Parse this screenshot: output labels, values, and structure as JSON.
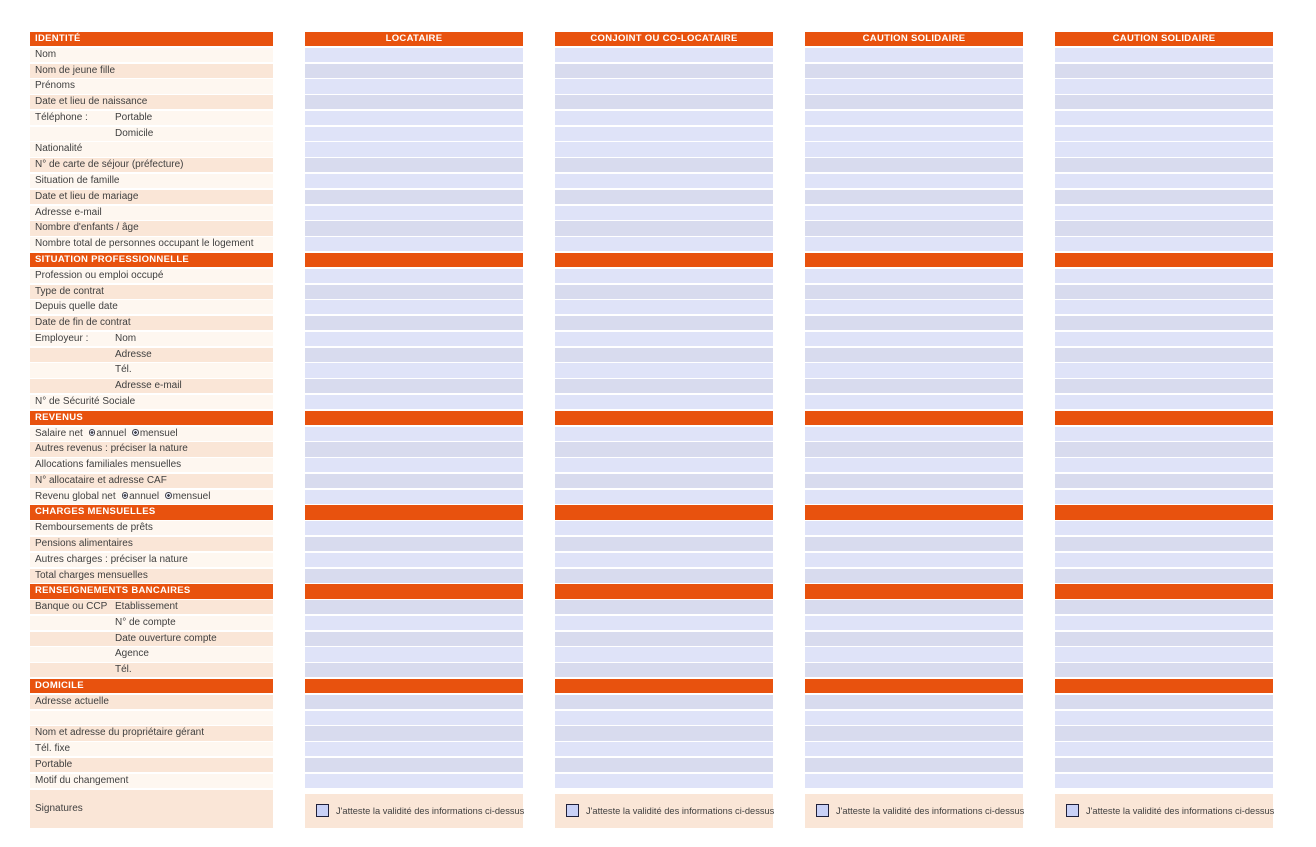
{
  "colors": {
    "section_header_bg": "#E8520E",
    "label_row_peach": "#FAE6D7",
    "label_row_white": "#FEF7F0",
    "input_bar_light": "#DFE3F8",
    "input_bar_dark": "#D8DBEE",
    "label_text": "#3F3F3F",
    "header_text": "#FFFFFF",
    "checkbox_fill": "#C9D1F7",
    "checkbox_border": "#20203A"
  },
  "columns": [
    "LOCATAIRE",
    "CONJOINT OU CO-LOCATAIRE",
    "CAUTION SOLIDAIRE",
    "CAUTION SOLIDAIRE"
  ],
  "sections": [
    {
      "title": "IDENTITÉ",
      "rows": [
        {
          "label": "Nom",
          "shade": "white"
        },
        {
          "label": "Nom de jeune fille",
          "shade": "peach"
        },
        {
          "label": "Prénoms",
          "shade": "white"
        },
        {
          "label": "Date et lieu de naissance",
          "shade": "peach"
        },
        {
          "label": "Téléphone :",
          "sublabel": "Portable",
          "shade": "white"
        },
        {
          "label": "",
          "sublabel": "Domicile",
          "shade": "white"
        },
        {
          "label": "Nationalité",
          "shade": "white"
        },
        {
          "label": "N° de carte de séjour (préfecture)",
          "shade": "peach"
        },
        {
          "label": "Situation de famille",
          "shade": "white"
        },
        {
          "label": "Date et lieu de mariage",
          "shade": "peach"
        },
        {
          "label": "Adresse e-mail",
          "shade": "white"
        },
        {
          "label": "Nombre d'enfants / âge",
          "shade": "peach"
        },
        {
          "label": "Nombre total de personnes occupant le logement",
          "shade": "white"
        }
      ]
    },
    {
      "title": "SITUATION PROFESSIONNELLE",
      "rows": [
        {
          "label": "Profession ou emploi occupé",
          "shade": "white"
        },
        {
          "label": "Type de contrat",
          "shade": "peach"
        },
        {
          "label": "Depuis quelle date",
          "shade": "white"
        },
        {
          "label": "Date de fin de contrat",
          "shade": "peach"
        },
        {
          "label": "Employeur :",
          "sublabel": "Nom",
          "shade": "white"
        },
        {
          "label": "",
          "sublabel": "Adresse",
          "shade": "peach"
        },
        {
          "label": "",
          "sublabel": "Tél.",
          "shade": "white"
        },
        {
          "label": "",
          "sublabel": "Adresse e-mail",
          "shade": "peach"
        },
        {
          "label": "N° de Sécurité Sociale",
          "shade": "white"
        }
      ]
    },
    {
      "title": "REVENUS",
      "rows": [
        {
          "label": "Salaire net",
          "radios": [
            "annuel",
            "mensuel"
          ],
          "radio_selected": null,
          "shade": "white"
        },
        {
          "label": "Autres revenus : préciser la nature",
          "shade": "peach"
        },
        {
          "label": "Allocations familiales mensuelles",
          "shade": "white"
        },
        {
          "label": "N° allocataire et adresse CAF",
          "shade": "peach"
        },
        {
          "label": "Revenu global net",
          "radios": [
            "annuel",
            "mensuel"
          ],
          "radio_selected": null,
          "shade": "white"
        }
      ]
    },
    {
      "title": "CHARGES MENSUELLES",
      "rows": [
        {
          "label": "Remboursements de prêts",
          "shade": "white"
        },
        {
          "label": "Pensions alimentaires",
          "shade": "peach"
        },
        {
          "label": "Autres charges : préciser la nature",
          "shade": "white"
        },
        {
          "label": "Total charges mensuelles",
          "shade": "peach"
        }
      ]
    },
    {
      "title": "RENSEIGNEMENTS BANCAIRES",
      "rows": [
        {
          "label": "Banque ou CCP",
          "sublabel": "Etablissement",
          "shade": "peach"
        },
        {
          "label": "",
          "sublabel": "N° de compte",
          "shade": "white"
        },
        {
          "label": "",
          "sublabel": "Date ouverture compte",
          "shade": "peach"
        },
        {
          "label": "",
          "sublabel": "Agence",
          "shade": "white"
        },
        {
          "label": "",
          "sublabel": "Tél.",
          "shade": "peach"
        }
      ]
    },
    {
      "title": "DOMICILE",
      "rows": [
        {
          "label": "Adresse actuelle",
          "shade": "peach"
        },
        {
          "label": "",
          "shade": "white"
        },
        {
          "label": "Nom et adresse du propriétaire gérant",
          "shade": "peach"
        },
        {
          "label": "Tél. fixe",
          "shade": "white"
        },
        {
          "label": "Portable",
          "shade": "peach"
        },
        {
          "label": "Motif du changement",
          "shade": "white"
        }
      ]
    }
  ],
  "signature": {
    "label": "Signatures",
    "checkbox_text": "J'atteste la validité des informations ci-dessus",
    "checked": false
  }
}
